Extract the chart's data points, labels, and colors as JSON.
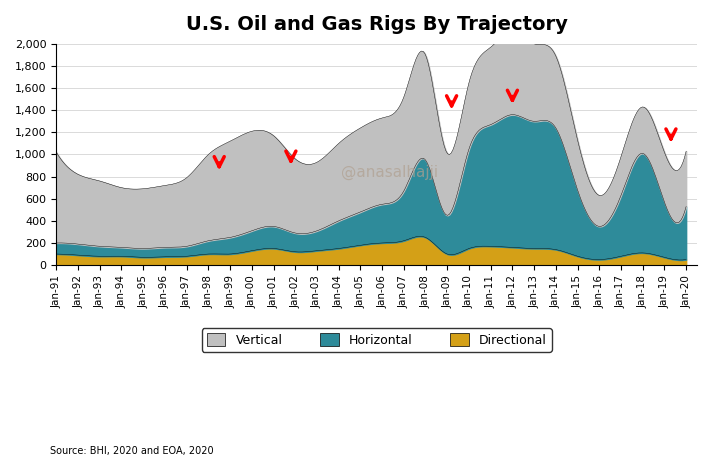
{
  "title": "U.S. Oil and Gas Rigs By Trajectory",
  "source": "Source: BHI, 2020 and EOA, 2020",
  "watermark": "@anasalhajji",
  "colors": {
    "vertical": "#c0c0c0",
    "horizontal": "#2e8b9a",
    "directional": "#d4a017"
  },
  "ylim": [
    0,
    2000
  ],
  "yticks": [
    0,
    200,
    400,
    600,
    800,
    1000,
    1200,
    1400,
    1600,
    1800,
    2000
  ],
  "arrows": [
    {
      "year": 1998.5,
      "y": 950
    },
    {
      "year": 2001.8,
      "y": 1000
    },
    {
      "year": 2009.2,
      "y": 1500
    },
    {
      "year": 2012.0,
      "y": 1550
    },
    {
      "year": 2019.3,
      "y": 1200
    }
  ],
  "years": [
    1991,
    1992,
    1993,
    1994,
    1995,
    1996,
    1997,
    1998,
    1999,
    2000,
    2001,
    2002,
    2003,
    2004,
    2005,
    2006,
    2007,
    2008,
    2009,
    2010,
    2011,
    2012,
    2013,
    2014,
    2015,
    2016,
    2017,
    2018,
    2019,
    2020
  ],
  "vertical": [
    820,
    630,
    590,
    540,
    540,
    560,
    620,
    780,
    870,
    900,
    820,
    670,
    620,
    700,
    760,
    780,
    850,
    950,
    560,
    600,
    700,
    750,
    700,
    650,
    450,
    280,
    350,
    420,
    450,
    500
  ],
  "horizontal": [
    100,
    100,
    90,
    80,
    80,
    85,
    90,
    120,
    150,
    180,
    200,
    170,
    180,
    250,
    300,
    350,
    450,
    700,
    350,
    900,
    1100,
    1200,
    1150,
    1100,
    600,
    300,
    550,
    900,
    500,
    480
  ],
  "directional": [
    100,
    90,
    80,
    80,
    70,
    75,
    80,
    100,
    100,
    130,
    150,
    120,
    130,
    150,
    180,
    200,
    220,
    250,
    100,
    150,
    170,
    160,
    150,
    140,
    80,
    50,
    80,
    110,
    70,
    50
  ]
}
